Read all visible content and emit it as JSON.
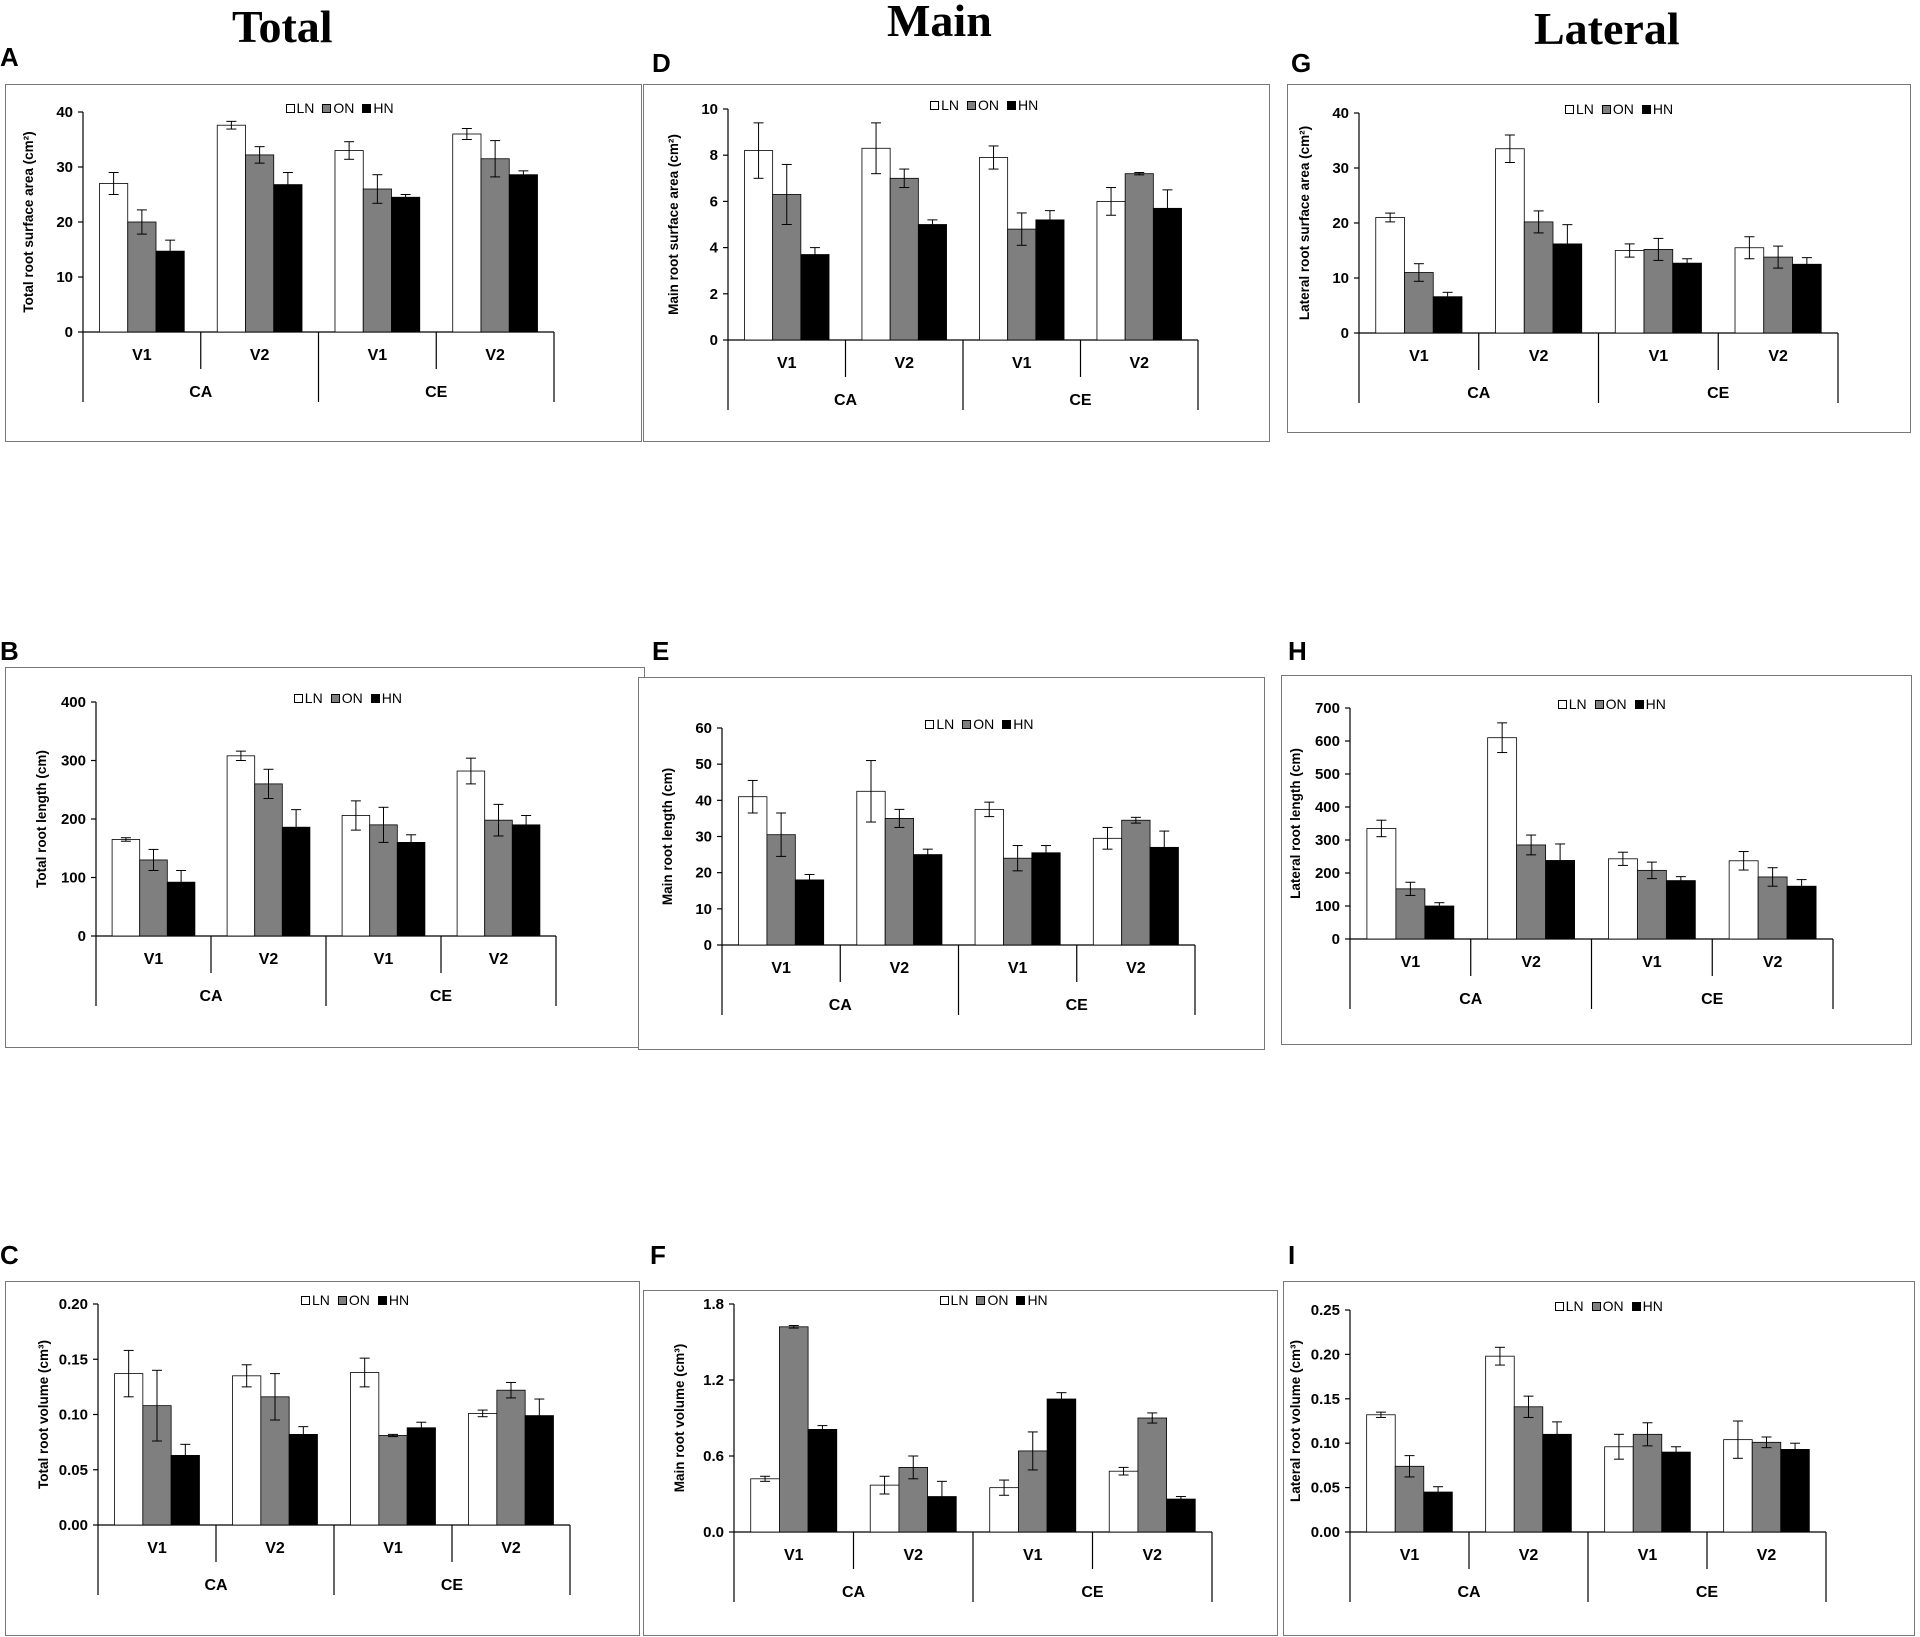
{
  "column_titles": [
    "Total",
    "Main",
    "Lateral"
  ],
  "legend": [
    "LN",
    "ON",
    "HN"
  ],
  "colors": {
    "LN": "#ffffff",
    "ON": "#7f7f7f",
    "HN": "#000000",
    "border": "#777777"
  },
  "group_labels": {
    "variety": [
      "V1",
      "V2",
      "V1",
      "V2"
    ],
    "treatment": [
      "CA",
      "CE"
    ]
  },
  "chart_data": [
    {
      "id": "A",
      "type": "bar",
      "ylabel": "Total root surface area (cm²)",
      "ylim": [
        0,
        40
      ],
      "yticks": [
        "0",
        "10",
        "20",
        "30",
        "40"
      ],
      "categories": [
        "V1",
        "V2",
        "V1",
        "V2"
      ],
      "groups": [
        "CA",
        "CE"
      ],
      "series": [
        {
          "name": "LN",
          "values": [
            27,
            37.6,
            33,
            36
          ],
          "errors": [
            2,
            0.7,
            1.6,
            1.0
          ]
        },
        {
          "name": "ON",
          "values": [
            20,
            32.2,
            26,
            31.5
          ],
          "errors": [
            2.2,
            1.5,
            2.6,
            3.3
          ]
        },
        {
          "name": "HN",
          "values": [
            14.7,
            26.8,
            24.5,
            28.6
          ],
          "errors": [
            2,
            2.2,
            0.5,
            0.7
          ]
        }
      ]
    },
    {
      "id": "B",
      "type": "bar",
      "ylabel": "Total root length (cm)",
      "ylim": [
        0,
        400
      ],
      "yticks": [
        "0",
        "100",
        "200",
        "300",
        "400"
      ],
      "categories": [
        "V1",
        "V2",
        "V1",
        "V2"
      ],
      "groups": [
        "CA",
        "CE"
      ],
      "series": [
        {
          "name": "LN",
          "values": [
            165,
            308,
            206,
            282
          ],
          "errors": [
            3,
            8,
            25,
            22
          ]
        },
        {
          "name": "ON",
          "values": [
            130,
            260,
            190,
            198
          ],
          "errors": [
            18,
            25,
            30,
            27
          ]
        },
        {
          "name": "HN",
          "values": [
            92,
            186,
            160,
            190
          ],
          "errors": [
            20,
            30,
            13,
            16
          ]
        }
      ]
    },
    {
      "id": "C",
      "type": "bar",
      "ylabel": "Total root volume (cm³)",
      "ylim": [
        0,
        0.2
      ],
      "yticks": [
        "0.00",
        "0.05",
        "0.10",
        "0.15",
        "0.20"
      ],
      "categories": [
        "V1",
        "V2",
        "V1",
        "V2"
      ],
      "groups": [
        "CA",
        "CE"
      ],
      "series": [
        {
          "name": "LN",
          "values": [
            0.137,
            0.135,
            0.138,
            0.101
          ],
          "errors": [
            0.021,
            0.01,
            0.013,
            0.003
          ]
        },
        {
          "name": "ON",
          "values": [
            0.108,
            0.116,
            0.081,
            0.122
          ],
          "errors": [
            0.032,
            0.021,
            0.001,
            0.007
          ]
        },
        {
          "name": "HN",
          "values": [
            0.063,
            0.082,
            0.088,
            0.099
          ],
          "errors": [
            0.01,
            0.007,
            0.005,
            0.015
          ]
        }
      ]
    },
    {
      "id": "D",
      "type": "bar",
      "ylabel": "Main root surface area (cm²)",
      "ylim": [
        0,
        10
      ],
      "yticks": [
        "0",
        "2",
        "4",
        "6",
        "8",
        "10"
      ],
      "categories": [
        "V1",
        "V2",
        "V1",
        "V2"
      ],
      "groups": [
        "CA",
        "CE"
      ],
      "series": [
        {
          "name": "LN",
          "values": [
            8.2,
            8.3,
            7.9,
            6.0
          ],
          "errors": [
            1.2,
            1.1,
            0.5,
            0.6
          ]
        },
        {
          "name": "ON",
          "values": [
            6.3,
            7.0,
            4.8,
            7.2
          ],
          "errors": [
            1.3,
            0.4,
            0.7,
            0.05
          ]
        },
        {
          "name": "HN",
          "values": [
            3.7,
            5.0,
            5.2,
            5.7
          ],
          "errors": [
            0.3,
            0.2,
            0.4,
            0.8
          ]
        }
      ]
    },
    {
      "id": "E",
      "type": "bar",
      "ylabel": "Main root length (cm)",
      "ylim": [
        0,
        60
      ],
      "yticks": [
        "0",
        "10",
        "20",
        "30",
        "40",
        "50",
        "60"
      ],
      "categories": [
        "V1",
        "V2",
        "V1",
        "V2"
      ],
      "groups": [
        "CA",
        "CE"
      ],
      "series": [
        {
          "name": "LN",
          "values": [
            41,
            42.5,
            37.5,
            29.5
          ],
          "errors": [
            4.5,
            8.5,
            2,
            3
          ]
        },
        {
          "name": "ON",
          "values": [
            30.5,
            35,
            24,
            34.5
          ],
          "errors": [
            6,
            2.5,
            3.5,
            0.8
          ]
        },
        {
          "name": "HN",
          "values": [
            18,
            25,
            25.5,
            27
          ],
          "errors": [
            1.5,
            1.5,
            2,
            4.5
          ]
        }
      ]
    },
    {
      "id": "F",
      "type": "bar",
      "ylabel": "Main root volume (cm³)",
      "ylim": [
        0,
        1.8
      ],
      "yticks": [
        "0.0",
        "0.6",
        "1.2",
        "1.8"
      ],
      "categories": [
        "V1",
        "V2",
        "V1",
        "V2"
      ],
      "groups": [
        "CA",
        "CE"
      ],
      "series": [
        {
          "name": "LN",
          "values": [
            0.42,
            0.37,
            0.35,
            0.48
          ],
          "errors": [
            0.02,
            0.07,
            0.06,
            0.03
          ]
        },
        {
          "name": "ON",
          "values": [
            1.62,
            0.51,
            0.64,
            0.9
          ],
          "errors": [
            0.01,
            0.09,
            0.15,
            0.04
          ]
        },
        {
          "name": "HN",
          "values": [
            0.81,
            0.28,
            1.05,
            0.26
          ],
          "errors": [
            0.03,
            0.12,
            0.05,
            0.02
          ]
        }
      ]
    },
    {
      "id": "G",
      "type": "bar",
      "ylabel": "Lateral root surface area (cm²)",
      "ylim": [
        0,
        40
      ],
      "yticks": [
        "0",
        "10",
        "20",
        "30",
        "40"
      ],
      "categories": [
        "V1",
        "V2",
        "V1",
        "V2"
      ],
      "groups": [
        "CA",
        "CE"
      ],
      "series": [
        {
          "name": "LN",
          "values": [
            21,
            33.5,
            15,
            15.5
          ],
          "errors": [
            0.8,
            2.5,
            1.2,
            2
          ]
        },
        {
          "name": "ON",
          "values": [
            11,
            20.2,
            15.2,
            13.8
          ],
          "errors": [
            1.6,
            2,
            2,
            2
          ]
        },
        {
          "name": "HN",
          "values": [
            6.6,
            16.2,
            12.7,
            12.5
          ],
          "errors": [
            0.8,
            3.5,
            0.8,
            1.2
          ]
        }
      ]
    },
    {
      "id": "H",
      "type": "bar",
      "ylabel": "Lateral root length (cm)",
      "ylim": [
        0,
        700
      ],
      "yticks": [
        "0",
        "100",
        "200",
        "300",
        "400",
        "500",
        "600",
        "700"
      ],
      "categories": [
        "V1",
        "V2",
        "V1",
        "V2"
      ],
      "groups": [
        "CA",
        "CE"
      ],
      "series": [
        {
          "name": "LN",
          "values": [
            335,
            610,
            243,
            237
          ],
          "errors": [
            25,
            45,
            20,
            28
          ]
        },
        {
          "name": "ON",
          "values": [
            152,
            285,
            208,
            188
          ],
          "errors": [
            20,
            30,
            25,
            28
          ]
        },
        {
          "name": "HN",
          "values": [
            100,
            238,
            177,
            160
          ],
          "errors": [
            10,
            50,
            12,
            20
          ]
        }
      ]
    },
    {
      "id": "I",
      "type": "bar",
      "ylabel": "Lateral root volume (cm³)",
      "ylim": [
        0,
        0.25
      ],
      "yticks": [
        "0.00",
        "0.05",
        "0.10",
        "0.15",
        "0.20",
        "0.25"
      ],
      "categories": [
        "V1",
        "V2",
        "V1",
        "V2"
      ],
      "groups": [
        "CA",
        "CE"
      ],
      "series": [
        {
          "name": "LN",
          "values": [
            0.132,
            0.198,
            0.096,
            0.104
          ],
          "errors": [
            0.003,
            0.01,
            0.014,
            0.021
          ]
        },
        {
          "name": "ON",
          "values": [
            0.074,
            0.141,
            0.11,
            0.101
          ],
          "errors": [
            0.012,
            0.012,
            0.013,
            0.006
          ]
        },
        {
          "name": "HN",
          "values": [
            0.045,
            0.11,
            0.09,
            0.093
          ],
          "errors": [
            0.006,
            0.014,
            0.006,
            0.007
          ]
        }
      ]
    }
  ]
}
